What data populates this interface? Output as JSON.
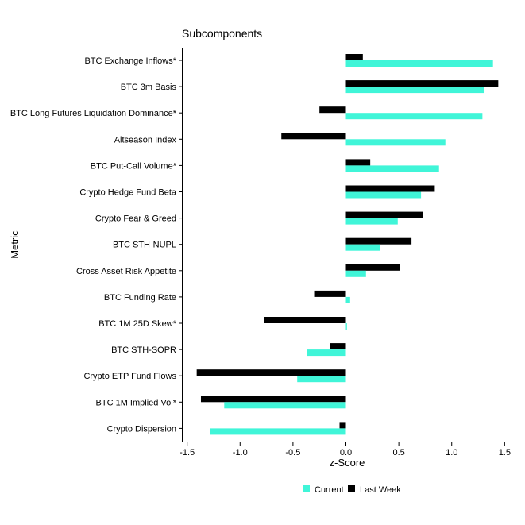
{
  "chart_data": {
    "type": "bar",
    "orientation": "horizontal",
    "title": "Subcomponents",
    "xlabel": "z-Score",
    "ylabel": "Metric",
    "xlim": [
      -1.55,
      1.58
    ],
    "xticks": [
      -1.5,
      -1.0,
      -0.5,
      0.0,
      0.5,
      1.0,
      1.5
    ],
    "xtick_labels": [
      "-1.5",
      "-1.0",
      "-0.5",
      "0.0",
      "0.5",
      "1.0",
      "1.5"
    ],
    "grid": false,
    "legend_position": "bottom",
    "categories": [
      "BTC Exchange Inflows*",
      "BTC 3m Basis",
      "BTC Long Futures Liquidation Dominance*",
      "Altseason Index",
      "BTC Put-Call Volume*",
      "Crypto Hedge Fund Beta",
      "Crypto Fear & Greed",
      "BTC STH-NUPL",
      "Cross Asset Risk Appetite",
      "BTC Funding Rate",
      "BTC 1M 25D Skew*",
      "BTC STH-SOPR",
      "Crypto ETP Fund Flows",
      "BTC 1M Implied Vol*",
      "Crypto Dispersion"
    ],
    "series": [
      {
        "name": "Current",
        "color": "#40F5D8",
        "values": [
          1.39,
          1.31,
          1.29,
          0.94,
          0.88,
          0.71,
          0.49,
          0.32,
          0.19,
          0.04,
          0.01,
          -0.37,
          -0.46,
          -1.15,
          -1.28
        ]
      },
      {
        "name": "Last Week",
        "color": "#000000",
        "values": [
          0.16,
          1.44,
          -0.25,
          -0.61,
          0.23,
          0.84,
          0.73,
          0.62,
          0.51,
          -0.3,
          -0.77,
          -0.15,
          -1.41,
          -1.37,
          -0.06
        ]
      }
    ]
  }
}
